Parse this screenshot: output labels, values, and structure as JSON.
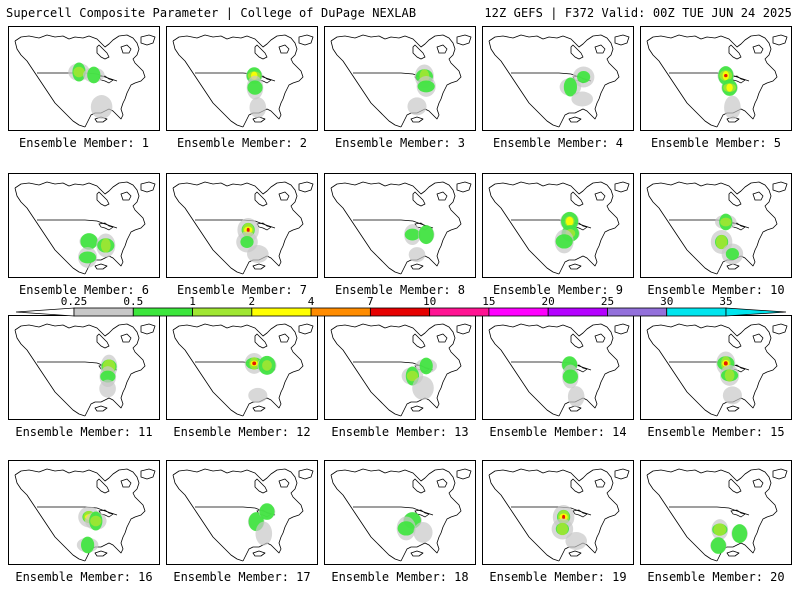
{
  "header": {
    "left": "Supercell Composite Parameter | College of DuPage NEXLAB",
    "right": "12Z GEFS | F372 Valid: 00Z TUE JUN 24 2025"
  },
  "legend": {
    "labels": [
      "0.25",
      "0.5",
      "1",
      "2",
      "4",
      "7",
      "10",
      "15",
      "20",
      "25",
      "30",
      "35"
    ],
    "colors": [
      "#ffffff",
      "#c8c8c8",
      "#3ce63c",
      "#a0e632",
      "#ffff00",
      "#ff8c00",
      "#e60000",
      "#ff1493",
      "#ff00ff",
      "#b400ff",
      "#9370db",
      "#00e5ee"
    ]
  },
  "members": [
    {
      "label": "Ensemble Member: 1",
      "blobs": [
        {
          "region": "n-plains",
          "level": 3
        },
        {
          "region": "upper-midwest",
          "level": 2
        },
        {
          "region": "gulf",
          "level": 1
        }
      ]
    },
    {
      "label": "Ensemble Member: 2",
      "blobs": [
        {
          "region": "upper-midwest",
          "level": 4
        },
        {
          "region": "mid-miss",
          "level": 2
        },
        {
          "region": "gulf",
          "level": 1
        }
      ]
    },
    {
      "label": "Ensemble Member: 3",
      "blobs": [
        {
          "region": "great-lakes",
          "level": 3
        },
        {
          "region": "ohio-valley",
          "level": 2
        },
        {
          "region": "gulf",
          "level": 1
        }
      ]
    },
    {
      "label": "Ensemble Member: 4",
      "blobs": [
        {
          "region": "great-lakes",
          "level": 2
        },
        {
          "region": "mid-miss",
          "level": 2
        },
        {
          "region": "southeast",
          "level": 1
        }
      ]
    },
    {
      "label": "Ensemble Member: 5",
      "blobs": [
        {
          "region": "upper-midwest",
          "level": 5
        },
        {
          "region": "mid-miss",
          "level": 4
        },
        {
          "region": "gulf",
          "level": 1
        }
      ]
    },
    {
      "label": "Ensemble Member: 6",
      "blobs": [
        {
          "region": "s-plains",
          "level": 2
        },
        {
          "region": "southeast",
          "level": 3
        },
        {
          "region": "mexico",
          "level": 2
        }
      ]
    },
    {
      "label": "Ensemble Member: 7",
      "blobs": [
        {
          "region": "c-plains",
          "level": 5
        },
        {
          "region": "s-plains",
          "level": 2
        },
        {
          "region": "gulf",
          "level": 1
        }
      ]
    },
    {
      "label": "Ensemble Member: 8",
      "blobs": [
        {
          "region": "mid-miss",
          "level": 2
        },
        {
          "region": "ohio-valley",
          "level": 2
        },
        {
          "region": "gulf",
          "level": 1
        }
      ]
    },
    {
      "label": "Ensemble Member: 9",
      "blobs": [
        {
          "region": "upper-midwest",
          "level": 4
        },
        {
          "region": "mid-miss",
          "level": 3
        },
        {
          "region": "s-plains",
          "level": 2
        }
      ]
    },
    {
      "label": "Ensemble Member: 10",
      "blobs": [
        {
          "region": "upper-midwest",
          "level": 3
        },
        {
          "region": "s-plains",
          "level": 3
        },
        {
          "region": "gulf",
          "level": 2
        }
      ]
    },
    {
      "label": "Ensemble Member: 11",
      "blobs": [
        {
          "region": "great-lakes",
          "level": 3
        },
        {
          "region": "ohio-valley",
          "level": 2
        },
        {
          "region": "southeast",
          "level": 1
        }
      ]
    },
    {
      "label": "Ensemble Member: 12",
      "blobs": [
        {
          "region": "upper-midwest",
          "level": 5
        },
        {
          "region": "great-lakes",
          "level": 3
        },
        {
          "region": "gulf",
          "level": 1
        }
      ]
    },
    {
      "label": "Ensemble Member: 13",
      "blobs": [
        {
          "region": "mid-miss",
          "level": 3
        },
        {
          "region": "great-lakes",
          "level": 2
        },
        {
          "region": "southeast",
          "level": 1
        }
      ]
    },
    {
      "label": "Ensemble Member: 14",
      "blobs": [
        {
          "region": "upper-midwest",
          "level": 2
        },
        {
          "region": "mid-miss",
          "level": 2
        },
        {
          "region": "gulf",
          "level": 1
        }
      ]
    },
    {
      "label": "Ensemble Member: 15",
      "blobs": [
        {
          "region": "upper-midwest",
          "level": 5
        },
        {
          "region": "mid-miss",
          "level": 3
        },
        {
          "region": "gulf",
          "level": 1
        }
      ]
    },
    {
      "label": "Ensemble Member: 16",
      "blobs": [
        {
          "region": "c-plains",
          "level": 4
        },
        {
          "region": "mid-miss",
          "level": 3
        },
        {
          "region": "mexico",
          "level": 2
        }
      ]
    },
    {
      "label": "Ensemble Member: 17",
      "blobs": [
        {
          "region": "mid-miss",
          "level": 2
        },
        {
          "region": "great-lakes",
          "level": 2
        },
        {
          "region": "southeast",
          "level": 1
        }
      ]
    },
    {
      "label": "Ensemble Member: 18",
      "blobs": [
        {
          "region": "mid-miss",
          "level": 2
        },
        {
          "region": "s-plains",
          "level": 2
        },
        {
          "region": "southeast",
          "level": 1
        }
      ]
    },
    {
      "label": "Ensemble Member: 19",
      "blobs": [
        {
          "region": "c-plains",
          "level": 5
        },
        {
          "region": "s-plains",
          "level": 3
        },
        {
          "region": "gulf",
          "level": 1
        }
      ]
    },
    {
      "label": "Ensemble Member: 20",
      "blobs": [
        {
          "region": "s-plains",
          "level": 3
        },
        {
          "region": "southeast",
          "level": 2
        },
        {
          "region": "mexico",
          "level": 2
        }
      ]
    }
  ]
}
